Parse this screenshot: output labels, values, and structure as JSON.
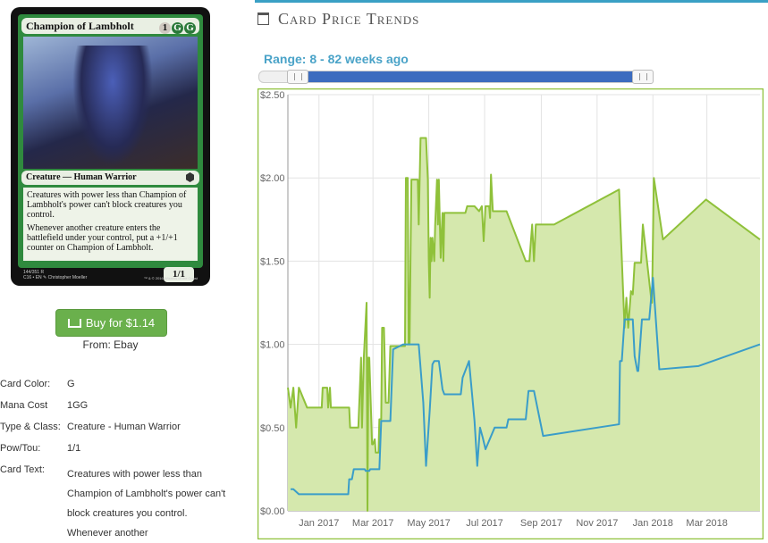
{
  "card": {
    "name": "Champion of Lambholt",
    "mana_symbols": [
      "1",
      "G",
      "G"
    ],
    "type_line": "Creature — Human Warrior",
    "rules_text": [
      "Creatures with power less than Champion of Lambholt's power can't block creatures you control.",
      "Whenever another creature enters the battlefield under your control, put a +1/+1 counter on Champion of Lambholt."
    ],
    "power_toughness": "1/1",
    "footer_line1": "144/351 R",
    "footer_line2": "C16 • EN ✎ Christopher Moeller",
    "footer_right": "™ & © 2016 Wizards of the Coast"
  },
  "buy": {
    "label": "Buy for $1.14",
    "from": "From: Ebay"
  },
  "details": [
    {
      "label": "Card Color:",
      "value": "G"
    },
    {
      "label": "Mana Cost",
      "value": "1GG"
    },
    {
      "label": "Type & Class:",
      "value": "Creature - Human Warrior"
    },
    {
      "label": "Pow/Tou:",
      "value": "1/1"
    },
    {
      "label": "Card Text:",
      "value": "Creatures with power less than Champion of Lambholt's power can't block creatures you control. Whenever another"
    }
  ],
  "trends": {
    "title": "Card Price Trends",
    "range_label": "Range: 8 - 82 weeks ago",
    "range_selected": [
      8,
      82
    ]
  },
  "colors": {
    "accent": "#3aa0c5",
    "green_line": "#8fc13a",
    "green_fill": "#d5e8ad",
    "blue_line": "#3a9dc9",
    "buy": "#6ab04c"
  },
  "chart_data": {
    "type": "area",
    "title": "",
    "xlabel": "",
    "ylabel": "",
    "ylim": [
      0,
      2.5
    ],
    "yticks": [
      "$0.00",
      "$0.50",
      "$1.00",
      "$1.50",
      "$2.00",
      "$2.50"
    ],
    "ytick_values": [
      0,
      0.5,
      1.0,
      1.5,
      2.0,
      2.5
    ],
    "xticks": [
      "Jan 2017",
      "Mar 2017",
      "May 2017",
      "Jul 2017",
      "Sep 2017",
      "Nov 2017",
      "Jan 2018",
      "Mar 2018"
    ],
    "xtick_values": [
      "2017-01-01",
      "2017-03-01",
      "2017-05-01",
      "2017-07-01",
      "2017-09-01",
      "2017-11-01",
      "2018-01-01",
      "2018-03-01"
    ],
    "xlim": [
      "2016-11-28",
      "2018-04-28"
    ],
    "series": [
      {
        "points": [
          [
            "2016-11-28",
            0.74
          ],
          [
            "2016-12-01",
            0.62
          ],
          [
            "2016-12-04",
            0.74
          ],
          [
            "2016-12-07",
            0.5
          ],
          [
            "2016-12-10",
            0.74
          ],
          [
            "2016-12-19",
            0.62
          ],
          [
            "2017-01-04",
            0.62
          ],
          [
            "2017-01-05",
            0.74
          ],
          [
            "2017-01-10",
            0.74
          ],
          [
            "2017-01-11",
            0.62
          ],
          [
            "2017-01-13",
            0.74
          ],
          [
            "2017-01-14",
            0.62
          ],
          [
            "2017-02-03",
            0.62
          ],
          [
            "2017-02-04",
            0.5
          ],
          [
            "2017-02-13",
            0.5
          ],
          [
            "2017-02-16",
            0.92
          ],
          [
            "2017-02-17",
            0.5
          ],
          [
            "2017-02-19",
            0.92
          ],
          [
            "2017-02-22",
            1.25
          ],
          [
            "2017-02-23",
            0.0
          ],
          [
            "2017-02-24",
            0.92
          ],
          [
            "2017-02-25",
            0.92
          ],
          [
            "2017-02-28",
            0.4
          ],
          [
            "2017-03-01",
            0.4
          ],
          [
            "2017-03-03",
            0.43
          ],
          [
            "2017-03-04",
            0.35
          ],
          [
            "2017-03-07",
            0.35
          ],
          [
            "2017-03-08",
            0.55
          ],
          [
            "2017-03-10",
            0.55
          ],
          [
            "2017-03-11",
            1.1
          ],
          [
            "2017-03-13",
            1.1
          ],
          [
            "2017-03-15",
            0.65
          ],
          [
            "2017-03-18",
            0.65
          ],
          [
            "2017-03-20",
            0.99
          ],
          [
            "2017-04-05",
            0.99
          ],
          [
            "2017-04-06",
            2.0
          ],
          [
            "2017-04-08",
            2.0
          ],
          [
            "2017-04-09",
            1.0
          ],
          [
            "2017-04-10",
            1.0
          ],
          [
            "2017-04-12",
            1.99
          ],
          [
            "2017-04-19",
            1.99
          ],
          [
            "2017-04-20",
            1.72
          ],
          [
            "2017-04-22",
            2.24
          ],
          [
            "2017-04-28",
            2.24
          ],
          [
            "2017-04-30",
            1.99
          ],
          [
            "2017-05-01",
            1.5
          ],
          [
            "2017-05-02",
            1.28
          ],
          [
            "2017-05-03",
            1.64
          ],
          [
            "2017-05-04",
            1.5
          ],
          [
            "2017-05-05",
            1.64
          ],
          [
            "2017-05-07",
            1.5
          ],
          [
            "2017-05-08",
            1.72
          ],
          [
            "2017-05-10",
            1.99
          ],
          [
            "2017-05-11",
            1.72
          ],
          [
            "2017-05-12",
            1.99
          ],
          [
            "2017-05-14",
            1.52
          ],
          [
            "2017-05-16",
            1.79
          ],
          [
            "2017-05-17",
            1.5
          ],
          [
            "2017-05-18",
            1.79
          ],
          [
            "2017-06-10",
            1.79
          ],
          [
            "2017-06-12",
            1.83
          ],
          [
            "2017-06-20",
            1.83
          ],
          [
            "2017-06-25",
            1.8
          ],
          [
            "2017-06-28",
            1.83
          ],
          [
            "2017-06-30",
            1.62
          ],
          [
            "2017-07-02",
            1.83
          ],
          [
            "2017-07-06",
            1.83
          ],
          [
            "2017-07-07",
            1.76
          ],
          [
            "2017-07-08",
            2.02
          ],
          [
            "2017-07-10",
            1.8
          ],
          [
            "2017-07-25",
            1.8
          ],
          [
            "2017-08-15",
            1.5
          ],
          [
            "2017-08-19",
            1.5
          ],
          [
            "2017-08-22",
            1.72
          ],
          [
            "2017-08-24",
            1.5
          ],
          [
            "2017-08-26",
            1.72
          ],
          [
            "2017-09-15",
            1.72
          ],
          [
            "2017-11-25",
            1.93
          ],
          [
            "2017-12-01",
            1.1
          ],
          [
            "2017-12-03",
            1.28
          ],
          [
            "2017-12-05",
            1.1
          ],
          [
            "2017-12-08",
            1.32
          ],
          [
            "2017-12-10",
            1.3
          ],
          [
            "2017-12-12",
            1.49
          ],
          [
            "2017-12-19",
            1.49
          ],
          [
            "2017-12-21",
            1.72
          ],
          [
            "2017-12-30",
            1.28
          ],
          [
            "2017-12-31",
            1.25
          ],
          [
            "2018-01-02",
            2.0
          ],
          [
            "2018-01-12",
            1.63
          ],
          [
            "2018-02-28",
            1.87
          ],
          [
            "2018-04-28",
            1.63
          ]
        ]
      },
      {
        "points": [
          [
            "2016-12-01",
            0.13
          ],
          [
            "2016-12-04",
            0.13
          ],
          [
            "2016-12-10",
            0.1
          ],
          [
            "2017-02-02",
            0.1
          ],
          [
            "2017-02-03",
            0.19
          ],
          [
            "2017-02-06",
            0.19
          ],
          [
            "2017-02-08",
            0.25
          ],
          [
            "2017-02-20",
            0.25
          ],
          [
            "2017-02-21",
            0.24
          ],
          [
            "2017-02-25",
            0.24
          ],
          [
            "2017-02-26",
            0.25
          ],
          [
            "2017-03-08",
            0.25
          ],
          [
            "2017-03-10",
            0.54
          ],
          [
            "2017-03-20",
            0.54
          ],
          [
            "2017-03-23",
            0.97
          ],
          [
            "2017-04-03",
            1.0
          ],
          [
            "2017-04-20",
            1.0
          ],
          [
            "2017-04-25",
            0.65
          ],
          [
            "2017-04-28",
            0.27
          ],
          [
            "2017-04-29",
            0.35
          ],
          [
            "2017-05-02",
            0.6
          ],
          [
            "2017-05-05",
            0.88
          ],
          [
            "2017-05-07",
            0.9
          ],
          [
            "2017-05-12",
            0.9
          ],
          [
            "2017-05-16",
            0.73
          ],
          [
            "2017-05-18",
            0.7
          ],
          [
            "2017-06-05",
            0.7
          ],
          [
            "2017-06-07",
            0.8
          ],
          [
            "2017-06-14",
            0.9
          ],
          [
            "2017-06-17",
            0.72
          ],
          [
            "2017-06-20",
            0.54
          ],
          [
            "2017-06-23",
            0.27
          ],
          [
            "2017-06-26",
            0.5
          ],
          [
            "2017-06-29",
            0.44
          ],
          [
            "2017-07-02",
            0.37
          ],
          [
            "2017-07-12",
            0.5
          ],
          [
            "2017-07-25",
            0.5
          ],
          [
            "2017-07-27",
            0.55
          ],
          [
            "2017-08-15",
            0.55
          ],
          [
            "2017-08-18",
            0.72
          ],
          [
            "2017-08-24",
            0.72
          ],
          [
            "2017-09-03",
            0.45
          ],
          [
            "2017-11-25",
            0.52
          ],
          [
            "2017-11-26",
            0.9
          ],
          [
            "2017-11-28",
            0.9
          ],
          [
            "2017-12-01",
            1.15
          ],
          [
            "2017-12-10",
            1.15
          ],
          [
            "2017-12-12",
            0.93
          ],
          [
            "2017-12-15",
            0.84
          ],
          [
            "2017-12-16",
            0.84
          ],
          [
            "2017-12-20",
            1.15
          ],
          [
            "2017-12-28",
            1.15
          ],
          [
            "2018-01-01",
            1.4
          ],
          [
            "2018-01-08",
            0.85
          ],
          [
            "2018-02-20",
            0.87
          ],
          [
            "2018-04-28",
            1.0
          ]
        ]
      }
    ]
  }
}
